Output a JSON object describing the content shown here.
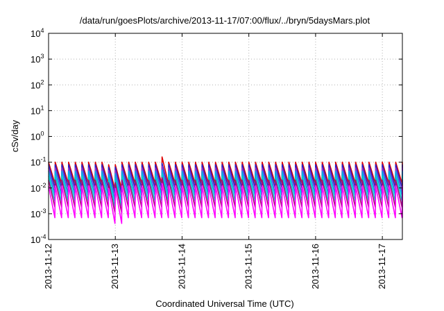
{
  "chart_data": {
    "type": "line",
    "title": "/data/run/goesPlots/archive/2013-11-17/07:00/flux/../bryn/5daysMars.plot",
    "xlabel": "Coordinated Universal Time (UTC)",
    "ylabel": "cSv/day",
    "yscale": "log",
    "ylim": [
      0.0001,
      10000
    ],
    "y_ticks": [
      {
        "base": "10",
        "exp": "-4",
        "value": 0.0001
      },
      {
        "base": "10",
        "exp": "-3",
        "value": 0.001
      },
      {
        "base": "10",
        "exp": "-2",
        "value": 0.01
      },
      {
        "base": "10",
        "exp": "-1",
        "value": 0.1
      },
      {
        "base": "10",
        "exp": "0",
        "value": 1
      },
      {
        "base": "10",
        "exp": "1",
        "value": 10
      },
      {
        "base": "10",
        "exp": "2",
        "value": 100
      },
      {
        "base": "10",
        "exp": "3",
        "value": 1000
      },
      {
        "base": "10",
        "exp": "4",
        "value": 10000
      }
    ],
    "x_ticks": [
      "2013-11-12",
      "2013-11-13",
      "2013-11-14",
      "2013-11-15",
      "2013-11-16",
      "2013-11-17"
    ],
    "x_tick_days": [
      0,
      1,
      2,
      3,
      4,
      5
    ],
    "xlim_days": [
      0,
      5.3
    ],
    "grid": true,
    "cycle_days": 0.1,
    "series": [
      {
        "color": "#e00000",
        "peak": 0.1,
        "trough": 0.015,
        "step_peak": 0.16
      },
      {
        "color": "#2222cc",
        "peak": 0.08,
        "trough": 0.01,
        "step_peak": 0.09
      },
      {
        "color": "#9933cc",
        "peak": 0.06,
        "trough": 0.006,
        "step_peak": 0.07
      },
      {
        "color": "#00aaee",
        "peak": 0.045,
        "trough": 0.005,
        "step_peak": 0.05
      },
      {
        "color": "#00c8c8",
        "peak": 0.03,
        "trough": 0.003,
        "step_peak": 0.035
      },
      {
        "color": "#aa0077",
        "peak": 0.02,
        "trough": 0.0018,
        "step_peak": 0.025
      },
      {
        "color": "#ff00ff",
        "peak": 0.012,
        "trough": 0.0007,
        "step_peak": 0.015
      }
    ]
  }
}
